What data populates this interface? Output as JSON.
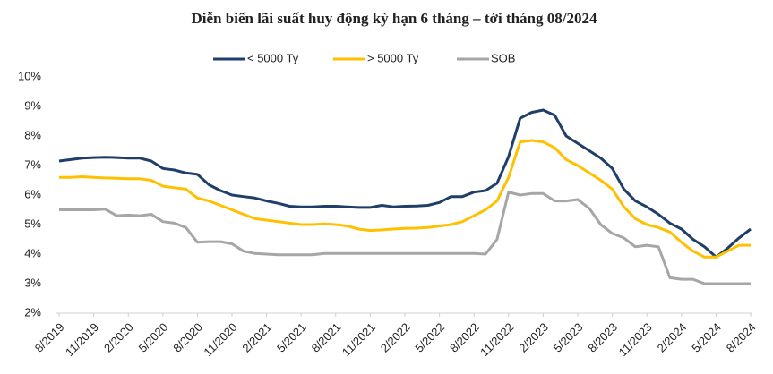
{
  "chart_data": {
    "type": "line",
    "title": "Diễn biến lãi suất huy động kỳ hạn 6 tháng – tới tháng 08/2024",
    "categories": [
      "8/2019",
      null,
      null,
      "11/2019",
      null,
      null,
      "2/2020",
      null,
      null,
      "5/2020",
      null,
      null,
      "8/2020",
      null,
      null,
      "11/2020",
      null,
      null,
      "2/2021",
      null,
      null,
      "5/2021",
      null,
      null,
      "8/2021",
      null,
      null,
      "11/2021",
      null,
      null,
      "2/2022",
      null,
      null,
      "5/2022",
      null,
      null,
      "8/2022",
      null,
      null,
      "11/2022",
      null,
      null,
      "2/2023",
      null,
      null,
      "5/2023",
      null,
      null,
      "8/2023",
      null,
      null,
      "11/2023",
      null,
      null,
      "2/2024",
      null,
      null,
      "5/2024",
      null,
      null,
      "8/2024"
    ],
    "series": [
      {
        "name": "< 5000 Ty",
        "color": "#1f3f68",
        "values": [
          7.15,
          7.2,
          7.25,
          7.27,
          7.28,
          7.27,
          7.25,
          7.25,
          7.15,
          6.9,
          6.85,
          6.75,
          6.7,
          6.35,
          6.15,
          6.0,
          5.95,
          5.9,
          5.8,
          5.72,
          5.62,
          5.6,
          5.6,
          5.62,
          5.62,
          5.6,
          5.58,
          5.58,
          5.65,
          5.6,
          5.62,
          5.63,
          5.65,
          5.75,
          5.95,
          5.95,
          6.1,
          6.15,
          6.4,
          7.3,
          8.6,
          8.8,
          8.88,
          8.7,
          8.0,
          7.75,
          7.5,
          7.25,
          6.9,
          6.2,
          5.8,
          5.6,
          5.35,
          5.05,
          4.85,
          4.5,
          4.25,
          3.9,
          4.2,
          4.55,
          4.85
        ]
      },
      {
        "name": "> 5000 Ty",
        "color": "#ffc000",
        "values": [
          6.6,
          6.6,
          6.62,
          6.6,
          6.58,
          6.57,
          6.55,
          6.55,
          6.5,
          6.3,
          6.25,
          6.2,
          5.9,
          5.8,
          5.65,
          5.5,
          5.35,
          5.2,
          5.15,
          5.1,
          5.05,
          5.0,
          5.0,
          5.02,
          5.0,
          4.95,
          4.85,
          4.8,
          4.82,
          4.85,
          4.87,
          4.88,
          4.9,
          4.95,
          5.0,
          5.1,
          5.3,
          5.5,
          5.8,
          6.6,
          7.8,
          7.85,
          7.8,
          7.6,
          7.2,
          7.0,
          6.75,
          6.5,
          6.2,
          5.6,
          5.2,
          5.0,
          4.9,
          4.75,
          4.4,
          4.1,
          3.9,
          3.9,
          4.1,
          4.3,
          4.3
        ]
      },
      {
        "name": "SOB",
        "color": "#a6a6a6",
        "values": [
          5.5,
          5.5,
          5.5,
          5.5,
          5.52,
          5.3,
          5.32,
          5.3,
          5.35,
          5.1,
          5.05,
          4.9,
          4.4,
          4.42,
          4.42,
          4.35,
          4.1,
          4.02,
          4.0,
          3.98,
          3.98,
          3.98,
          3.98,
          4.02,
          4.02,
          4.02,
          4.02,
          4.02,
          4.02,
          4.02,
          4.02,
          4.02,
          4.02,
          4.02,
          4.02,
          4.02,
          4.02,
          4.0,
          4.5,
          6.1,
          6.0,
          6.05,
          6.05,
          5.8,
          5.8,
          5.85,
          5.55,
          5.0,
          4.7,
          4.55,
          4.25,
          4.3,
          4.25,
          3.2,
          3.15,
          3.15,
          3.0,
          3.0,
          3.0,
          3.0,
          3.0
        ]
      }
    ],
    "ylim": [
      2,
      10
    ],
    "yticks": [
      {
        "value": 2,
        "label": "2%"
      },
      {
        "value": 3,
        "label": "3%"
      },
      {
        "value": 4,
        "label": "4%"
      },
      {
        "value": 5,
        "label": "5%"
      },
      {
        "value": 6,
        "label": "6%"
      },
      {
        "value": 7,
        "label": "7%"
      },
      {
        "value": 8,
        "label": "8%"
      },
      {
        "value": 9,
        "label": "9%"
      },
      {
        "value": 10,
        "label": "10%"
      }
    ],
    "legend": "top"
  }
}
